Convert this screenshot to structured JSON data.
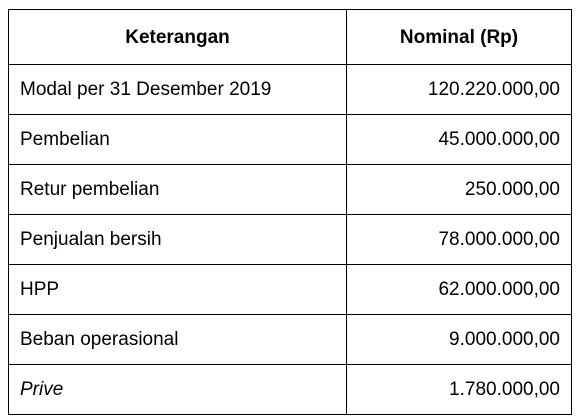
{
  "table": {
    "headers": {
      "description": "Keterangan",
      "amount": "Nominal (Rp)"
    },
    "rows": [
      {
        "label": "Modal per 31 Desember 2019",
        "amount": "120.220.000,00",
        "italic": false
      },
      {
        "label": "Pembelian",
        "amount": "45.000.000,00",
        "italic": false
      },
      {
        "label": "Retur pembelian",
        "amount": "250.000,00",
        "italic": false
      },
      {
        "label": "Penjualan bersih",
        "amount": "78.000.000,00",
        "italic": false
      },
      {
        "label": "HPP",
        "amount": "62.000.000,00",
        "italic": false
      },
      {
        "label": "Beban operasional",
        "amount": "9.000.000,00",
        "italic": false
      },
      {
        "label": "Prive",
        "amount": "1.780.000,00",
        "italic": true
      }
    ]
  }
}
